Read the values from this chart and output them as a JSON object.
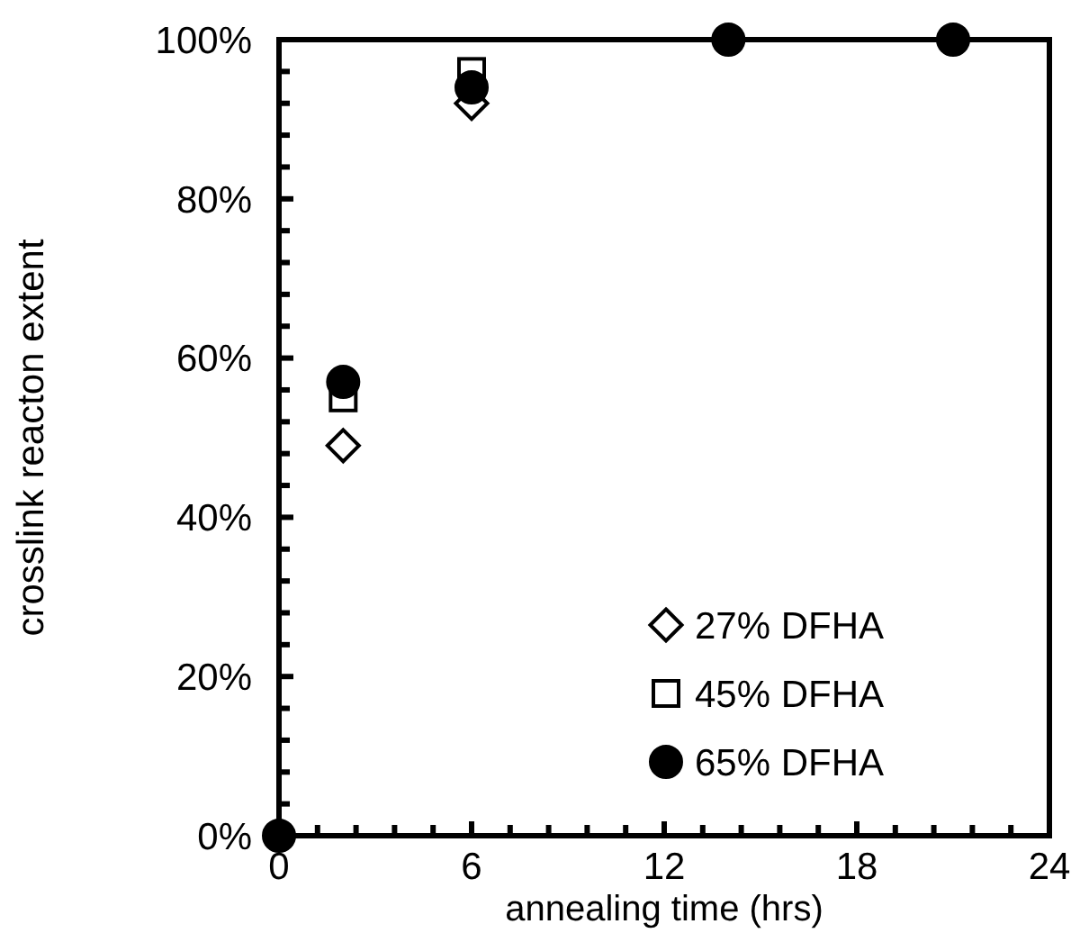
{
  "chart_data": {
    "type": "scatter",
    "xlabel": "annealing time (hrs)",
    "ylabel": "crosslink reacton extent",
    "x": [
      0,
      2,
      6,
      14,
      21
    ],
    "series": [
      {
        "name": "27% DFHA",
        "color": "#000000",
        "marker": "diamond",
        "values": [
          null,
          49,
          92,
          null,
          null
        ]
      },
      {
        "name": "45% DFHA",
        "color": "#000000",
        "marker": "square",
        "values": [
          null,
          55,
          96,
          null,
          null
        ]
      },
      {
        "name": "65% DFHA",
        "color": "#000000",
        "marker": "circle",
        "values": [
          0,
          57,
          94,
          100,
          100
        ]
      }
    ],
    "xlim": [
      0,
      24
    ],
    "xticks": [
      0,
      {
        "value": 1.2,
        "label": null
      },
      {
        "value": 2.4,
        "label": null
      },
      {
        "value": 3.6,
        "label": null
      },
      {
        "value": 4.8,
        "label": null
      },
      6,
      {
        "value": 7.2,
        "label": null
      },
      {
        "value": 8.4,
        "label": null
      },
      {
        "value": 9.6,
        "label": null
      },
      {
        "value": 10.8,
        "label": null
      },
      12,
      {
        "value": 13.2,
        "label": null
      },
      {
        "value": 14.4,
        "label": null
      },
      {
        "value": 15.6,
        "label": null
      },
      {
        "value": 16.8,
        "label": null
      },
      18,
      {
        "value": 19.2,
        "label": null
      },
      {
        "value": 20.4,
        "label": null
      },
      {
        "value": 21.6,
        "label": null
      },
      {
        "value": 22.8,
        "label": null
      },
      24
    ],
    "ylim": [
      0,
      100
    ],
    "yticks": [
      {
        "value": 0,
        "label": "0%"
      },
      {
        "value": 4,
        "label": null
      },
      {
        "value": 8,
        "label": null
      },
      {
        "value": 12,
        "label": null
      },
      {
        "value": 16,
        "label": null
      },
      {
        "value": 20,
        "label": "20%"
      },
      {
        "value": 24,
        "label": null
      },
      {
        "value": 28,
        "label": null
      },
      {
        "value": 32,
        "label": null
      },
      {
        "value": 36,
        "label": null
      },
      {
        "value": 40,
        "label": "40%"
      },
      {
        "value": 44,
        "label": null
      },
      {
        "value": 48,
        "label": null
      },
      {
        "value": 52,
        "label": null
      },
      {
        "value": 56,
        "label": null
      },
      {
        "value": 60,
        "label": "60%"
      },
      {
        "value": 64,
        "label": null
      },
      {
        "value": 68,
        "label": null
      },
      {
        "value": 72,
        "label": null
      },
      {
        "value": 76,
        "label": null
      },
      {
        "value": 80,
        "label": "80%"
      },
      {
        "value": 84,
        "label": null
      },
      {
        "value": 88,
        "label": null
      },
      {
        "value": 92,
        "label": null
      },
      {
        "value": 96,
        "label": null
      },
      {
        "value": 100,
        "label": "100%"
      }
    ],
    "grid": false,
    "legend": "bottom right"
  }
}
